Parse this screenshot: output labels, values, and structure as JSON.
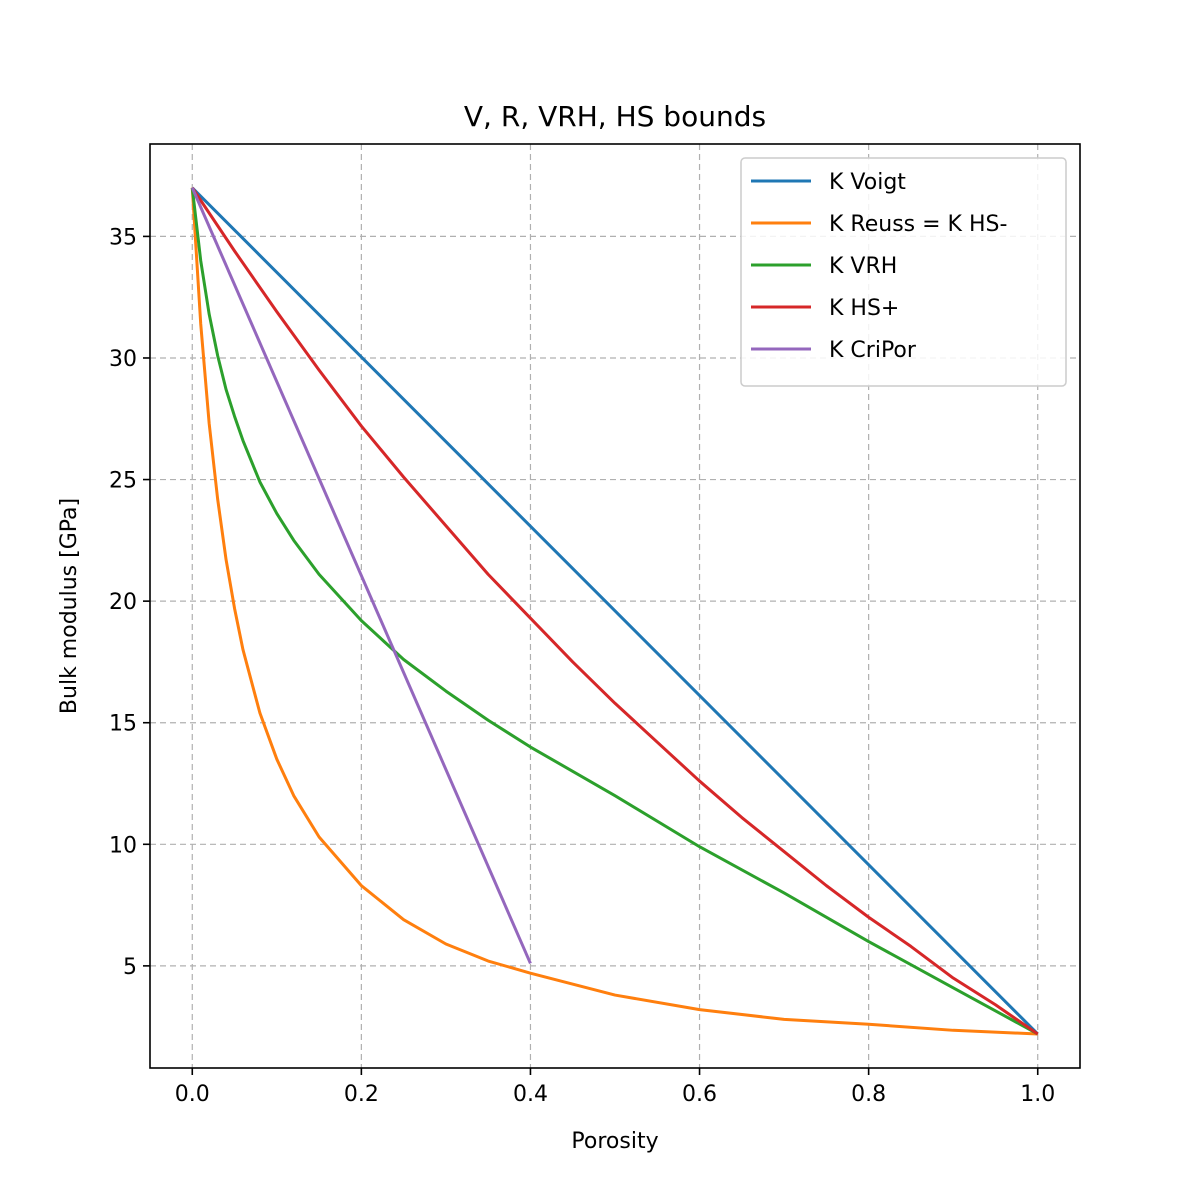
{
  "chart_data": {
    "type": "line",
    "title": "V, R, VRH, HS bounds",
    "xlabel": "Porosity",
    "ylabel": "Bulk modulus [GPa]",
    "xlim": [
      -0.05,
      1.05
    ],
    "ylim": [
      0.8,
      38.8
    ],
    "xticks": [
      0.0,
      0.2,
      0.4,
      0.6,
      0.8,
      1.0
    ],
    "xtick_labels": [
      "0.0",
      "0.2",
      "0.4",
      "0.6",
      "0.8",
      "1.0"
    ],
    "yticks": [
      5,
      10,
      15,
      20,
      25,
      30,
      35
    ],
    "ytick_labels": [
      "5",
      "10",
      "15",
      "20",
      "25",
      "30",
      "35"
    ],
    "grid": true,
    "legend_position": "top-right",
    "series": [
      {
        "name": "K Voigt",
        "color": "#1f77b4",
        "x": [
          0.0,
          1.0
        ],
        "y": [
          37.0,
          2.2
        ]
      },
      {
        "name": "K Reuss = K HS-",
        "color": "#ff7f0e",
        "x": [
          0.0,
          0.01,
          0.02,
          0.03,
          0.04,
          0.05,
          0.06,
          0.08,
          0.1,
          0.12,
          0.15,
          0.2,
          0.25,
          0.3,
          0.35,
          0.4,
          0.5,
          0.6,
          0.7,
          0.8,
          0.9,
          1.0
        ],
        "y": [
          37.0,
          31.4,
          27.3,
          24.2,
          21.7,
          19.7,
          18.0,
          15.4,
          13.5,
          12.0,
          10.3,
          8.3,
          6.9,
          5.9,
          5.2,
          4.7,
          3.8,
          3.2,
          2.8,
          2.6,
          2.35,
          2.2
        ]
      },
      {
        "name": "K VRH",
        "color": "#2ca02c",
        "x": [
          0.0,
          0.01,
          0.02,
          0.03,
          0.04,
          0.05,
          0.06,
          0.08,
          0.1,
          0.12,
          0.15,
          0.2,
          0.25,
          0.3,
          0.35,
          0.4,
          0.5,
          0.6,
          0.7,
          0.8,
          0.9,
          1.0
        ],
        "y": [
          37.0,
          34.0,
          31.8,
          30.1,
          28.7,
          27.6,
          26.6,
          24.9,
          23.6,
          22.5,
          21.1,
          19.2,
          17.6,
          16.3,
          15.1,
          14.0,
          12.0,
          9.9,
          8.0,
          6.0,
          4.1,
          2.2
        ]
      },
      {
        "name": "K HS+",
        "color": "#d62728",
        "x": [
          0.0,
          0.05,
          0.1,
          0.15,
          0.2,
          0.25,
          0.3,
          0.35,
          0.4,
          0.45,
          0.5,
          0.55,
          0.6,
          0.65,
          0.7,
          0.75,
          0.8,
          0.85,
          0.9,
          0.95,
          1.0
        ],
        "y": [
          37.0,
          34.4,
          31.9,
          29.5,
          27.2,
          25.1,
          23.1,
          21.1,
          19.3,
          17.5,
          15.8,
          14.2,
          12.6,
          11.1,
          9.7,
          8.3,
          7.0,
          5.8,
          4.5,
          3.4,
          2.2
        ]
      },
      {
        "name": "K CriPor",
        "color": "#9467bd",
        "x": [
          0.0,
          0.4
        ],
        "y": [
          37.0,
          5.1
        ]
      }
    ]
  }
}
